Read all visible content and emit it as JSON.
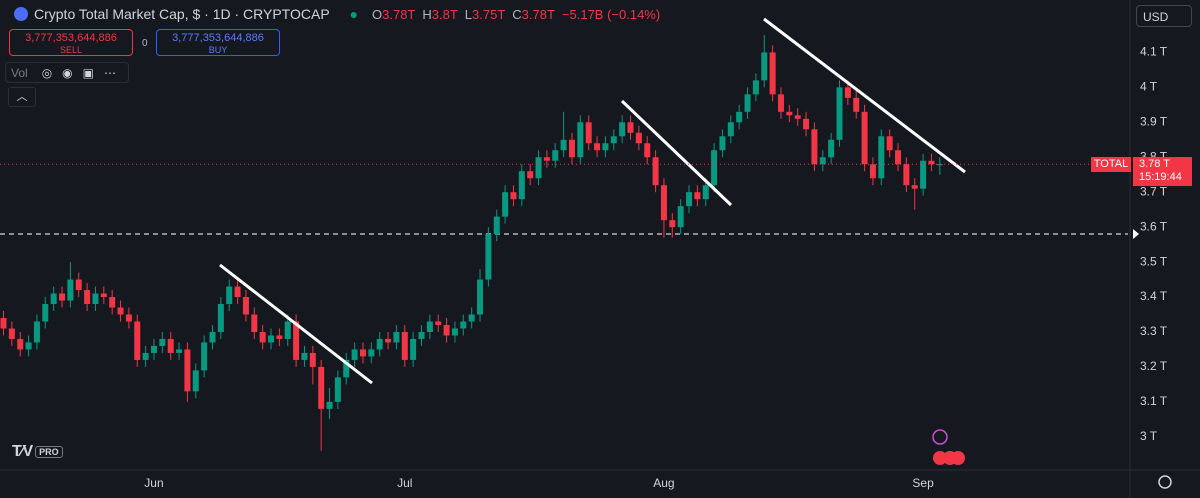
{
  "header": {
    "symbol": "Crypto Total Market Cap, $ · 1D · CRYPTOCAP",
    "ohlc": [
      {
        "key": "O",
        "value": "3.78T"
      },
      {
        "key": "H",
        "value": "3.8T"
      },
      {
        "key": "L",
        "value": "3.75T"
      },
      {
        "key": "C",
        "value": "3.78T"
      }
    ],
    "change": "−5.17B (−0.14%)"
  },
  "trade": {
    "sell_price": "3,777,353,644,886",
    "sell": "SELL",
    "spread": "0",
    "buy_price": "3,777,353,644,886",
    "buy": "BUY"
  },
  "indicator": "Vol",
  "currency": "USD",
  "logo": "PRO",
  "price_label": {
    "symbol": "TOTAL",
    "price": "3.78 T",
    "countdown": "15:19:44"
  },
  "chart_data": {
    "type": "candlestick",
    "up_color": "#089981",
    "down_color": "#f23645",
    "categories": [
      null,
      null,
      null,
      null,
      null,
      null,
      null,
      null,
      null,
      null,
      null,
      null,
      null,
      null,
      null,
      null,
      null,
      null,
      "Jun",
      null,
      null,
      null,
      null,
      null,
      null,
      null,
      null,
      null,
      null,
      null,
      null,
      null,
      null,
      null,
      null,
      null,
      null,
      null,
      null,
      null,
      null,
      null,
      null,
      null,
      null,
      null,
      null,
      null,
      "Jul",
      null,
      null,
      null,
      null,
      null,
      null,
      null,
      null,
      null,
      null,
      null,
      null,
      null,
      null,
      null,
      null,
      null,
      null,
      null,
      null,
      null,
      null,
      null,
      null,
      null,
      null,
      null,
      null,
      null,
      null,
      "Aug",
      null,
      null,
      null,
      null,
      null,
      null,
      null,
      null,
      null,
      null,
      null,
      null,
      null,
      null,
      null,
      null,
      null,
      null,
      null,
      null,
      null,
      null,
      null,
      null,
      null,
      null,
      null,
      null,
      null,
      null,
      "Sep",
      null,
      null
    ],
    "open": [
      3.34,
      3.31,
      3.28,
      3.25,
      3.27,
      3.33,
      3.38,
      3.41,
      3.39,
      3.45,
      3.42,
      3.38,
      3.41,
      3.4,
      3.37,
      3.35,
      3.33,
      3.22,
      3.24,
      3.26,
      3.28,
      3.24,
      3.25,
      3.13,
      3.19,
      3.27,
      3.3,
      3.38,
      3.43,
      3.4,
      3.35,
      3.3,
      3.27,
      3.29,
      3.28,
      3.33,
      3.22,
      3.24,
      3.2,
      3.08,
      3.1,
      3.17,
      3.22,
      3.25,
      3.23,
      3.25,
      3.28,
      3.27,
      3.3,
      3.22,
      3.28,
      3.3,
      3.33,
      3.32,
      3.29,
      3.31,
      3.33,
      3.35,
      3.45,
      3.58,
      3.63,
      3.7,
      3.68,
      3.76,
      3.74,
      3.8,
      3.79,
      3.82,
      3.85,
      3.8,
      3.9,
      3.84,
      3.82,
      3.84,
      3.86,
      3.9,
      3.87,
      3.84,
      3.8,
      3.72,
      3.62,
      3.6,
      3.66,
      3.7,
      3.68,
      3.72,
      3.82,
      3.86,
      3.9,
      3.93,
      3.98,
      4.02,
      4.1,
      3.98,
      3.93,
      3.92,
      3.91,
      3.88,
      3.78,
      3.8,
      3.85,
      4.0,
      3.97,
      3.93,
      3.78,
      3.74,
      3.86,
      3.82,
      3.78,
      3.72,
      3.71,
      3.79,
      3.78
    ],
    "high": [
      3.36,
      3.33,
      3.3,
      3.29,
      3.35,
      3.4,
      3.43,
      3.43,
      3.5,
      3.47,
      3.44,
      3.43,
      3.43,
      3.42,
      3.39,
      3.37,
      3.35,
      3.26,
      3.28,
      3.3,
      3.3,
      3.27,
      3.27,
      3.21,
      3.29,
      3.32,
      3.4,
      3.45,
      3.45,
      3.42,
      3.37,
      3.32,
      3.31,
      3.31,
      3.35,
      3.35,
      3.26,
      3.26,
      3.22,
      3.14,
      3.19,
      3.24,
      3.27,
      3.27,
      3.27,
      3.3,
      3.3,
      3.32,
      3.32,
      3.3,
      3.32,
      3.35,
      3.35,
      3.34,
      3.33,
      3.35,
      3.37,
      3.48,
      3.6,
      3.65,
      3.72,
      3.72,
      3.78,
      3.78,
      3.82,
      3.82,
      3.84,
      3.93,
      3.87,
      3.92,
      3.92,
      3.86,
      3.86,
      3.88,
      3.92,
      3.92,
      3.89,
      3.86,
      3.82,
      3.74,
      3.64,
      3.68,
      3.72,
      3.72,
      3.74,
      3.84,
      3.88,
      3.92,
      3.95,
      4.0,
      4.04,
      4.15,
      4.12,
      4.0,
      3.95,
      3.94,
      3.93,
      3.9,
      3.82,
      3.87,
      4.02,
      4.02,
      3.99,
      3.95,
      3.8,
      3.88,
      3.88,
      3.84,
      3.8,
      3.74,
      3.81,
      3.81,
      3.8
    ],
    "low": [
      3.29,
      3.26,
      3.23,
      3.23,
      3.25,
      3.31,
      3.36,
      3.37,
      3.37,
      3.4,
      3.36,
      3.36,
      3.38,
      3.35,
      3.33,
      3.31,
      3.2,
      3.2,
      3.22,
      3.24,
      3.22,
      3.22,
      3.1,
      3.11,
      3.17,
      3.25,
      3.28,
      3.36,
      3.38,
      3.33,
      3.28,
      3.25,
      3.25,
      3.26,
      3.26,
      3.2,
      3.2,
      3.15,
      2.96,
      3.05,
      3.08,
      3.15,
      3.2,
      3.21,
      3.21,
      3.23,
      3.25,
      3.25,
      3.2,
      3.2,
      3.26,
      3.28,
      3.3,
      3.27,
      3.27,
      3.29,
      3.31,
      3.33,
      3.43,
      3.56,
      3.61,
      3.66,
      3.66,
      3.72,
      3.72,
      3.77,
      3.77,
      3.8,
      3.78,
      3.78,
      3.82,
      3.8,
      3.8,
      3.82,
      3.84,
      3.85,
      3.82,
      3.78,
      3.7,
      3.57,
      3.57,
      3.58,
      3.64,
      3.66,
      3.66,
      3.7,
      3.8,
      3.84,
      3.88,
      3.91,
      3.96,
      4.0,
      3.96,
      3.91,
      3.9,
      3.89,
      3.86,
      3.76,
      3.76,
      3.78,
      3.83,
      3.95,
      3.91,
      3.76,
      3.72,
      3.72,
      3.8,
      3.76,
      3.7,
      3.65,
      3.69,
      3.76,
      3.75
    ],
    "close": [
      3.31,
      3.28,
      3.25,
      3.27,
      3.33,
      3.38,
      3.41,
      3.39,
      3.45,
      3.42,
      3.38,
      3.41,
      3.4,
      3.37,
      3.35,
      3.33,
      3.22,
      3.24,
      3.26,
      3.28,
      3.24,
      3.25,
      3.13,
      3.19,
      3.27,
      3.3,
      3.38,
      3.43,
      3.4,
      3.35,
      3.3,
      3.27,
      3.29,
      3.28,
      3.33,
      3.22,
      3.24,
      3.2,
      3.08,
      3.1,
      3.17,
      3.22,
      3.25,
      3.23,
      3.25,
      3.28,
      3.27,
      3.3,
      3.22,
      3.28,
      3.3,
      3.33,
      3.32,
      3.29,
      3.31,
      3.33,
      3.35,
      3.45,
      3.58,
      3.63,
      3.7,
      3.68,
      3.76,
      3.74,
      3.8,
      3.79,
      3.82,
      3.85,
      3.8,
      3.9,
      3.84,
      3.82,
      3.84,
      3.86,
      3.9,
      3.87,
      3.84,
      3.8,
      3.72,
      3.62,
      3.6,
      3.66,
      3.7,
      3.68,
      3.72,
      3.82,
      3.86,
      3.9,
      3.93,
      3.98,
      4.02,
      4.1,
      3.98,
      3.93,
      3.92,
      3.91,
      3.88,
      3.78,
      3.8,
      3.85,
      4.0,
      3.97,
      3.93,
      3.78,
      3.74,
      3.86,
      3.82,
      3.78,
      3.72,
      3.71,
      3.79,
      3.78,
      3.78
    ],
    "ylim": [
      2.905,
      4.25
    ],
    "yticks": [
      {
        "value": 3,
        "label": "3 T"
      },
      {
        "value": 3.1,
        "label": "3.1 T"
      },
      {
        "value": 3.2,
        "label": "3.2 T"
      },
      {
        "value": 3.3,
        "label": "3.3 T"
      },
      {
        "value": 3.4,
        "label": "3.4 T"
      },
      {
        "value": 3.5,
        "label": "3.5 T"
      },
      {
        "value": 3.6,
        "label": "3.6 T"
      },
      {
        "value": 3.7,
        "label": "3.7 T"
      },
      {
        "value": 3.8,
        "label": "3.8 T"
      },
      {
        "value": 3.9,
        "label": "3.9 T"
      },
      {
        "value": 4,
        "label": "4 T"
      },
      {
        "value": 4.1,
        "label": "4.1 T"
      }
    ],
    "grid": false
  }
}
